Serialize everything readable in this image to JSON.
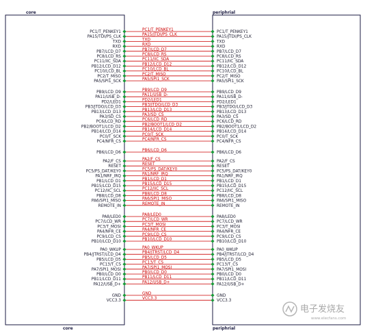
{
  "blocks": {
    "core_top": "core",
    "core_bottom": "core",
    "periph_top": "periphrial",
    "periph_bottom": "periphrial"
  },
  "watermark": {
    "text": "电子发烧友",
    "url": "www.elecfans.com"
  },
  "colors": {
    "wire": "#cc0000",
    "pin": "#1a9a3a",
    "box": "#1a1a40",
    "text": "#1a1a2e",
    "net_label": "#cc0000"
  },
  "connections": [
    {
      "core": "PC1/T_PENKEY1",
      "net": "PC1/T_PENKEY1",
      "periph": "PC1/T_PENKEY1"
    },
    {
      "core": "PA15/TDI/PS_CLK",
      "net": "PA15/JTDI/PS_CLK",
      "periph": "PA15/JTDI/PS_CLK"
    },
    {
      "core": "TXD",
      "net": "TXD",
      "periph": "TXD"
    },
    {
      "core": "RXD",
      "net": "RXD",
      "periph": "RXD"
    },
    {
      "core": "PB7/LCD_D7",
      "net": "PB7/LCD_D7",
      "periph": "PB7/LCD_D7"
    },
    {
      "core": "PC8/LCD_RS",
      "net": "PC8/LCD_RS",
      "periph": "PC8/LCD_RS"
    },
    {
      "core": "PC11/IIC_SDA",
      "net": "PC11/IIC_SDA",
      "periph": "PC11/IIC_SDA"
    },
    {
      "core": "PB12/LCD_D12",
      "net": "PB12/LCD_D12",
      "periph": "PB12/LCD_D12"
    },
    {
      "core": "PC10/LCD_BL",
      "net": "PC10/LCD_BL",
      "periph": "PC10/LCD_BL"
    },
    {
      "core": "PC2/T_MISO",
      "net": "PC2/T_MISO",
      "periph": "PC2/T_MISO"
    },
    {
      "core": "PA5/SPI1_SCK",
      "net": "PA5/SPI1_SCK",
      "periph": "PA5/SPI1_SCK"
    },
    {
      "core": "PB9/LCD_D9",
      "net": "PB9/LCD_D9",
      "periph": "PB9/LCD_D9"
    },
    {
      "core": "PA11/USB_D-",
      "net": "PA11/USB_D-",
      "periph": "PA11/USB_D-"
    },
    {
      "core": "PD2/LED1",
      "net": "PD2/LED1",
      "periph": "PD2/LED1"
    },
    {
      "core": "PB3/JTDO/LCD_D3",
      "net": "PB3/JTDO/LCD_D3",
      "periph": "PB3/JTDO/LCD_D3"
    },
    {
      "core": "PB13/LCD_D13",
      "net": "PB13/LCD_D13",
      "periph": "PB13/LCD_D13"
    },
    {
      "core": "PA3/SD_CS",
      "net": "PA3/SD_CS",
      "periph": "PA3/SD_CS"
    },
    {
      "core": "PC6/LCD_RD",
      "net": "PC6/LCD_RD",
      "periph": "PC6/LCD_RD"
    },
    {
      "core": "PB2/BOOT1/LCD_D2",
      "net": "PB2/BOOT1/LCD_D2",
      "periph": "PB2/BOOT1/LCD_D2"
    },
    {
      "core": "PB14/LCD_D14",
      "net": "PB14/LCD_D14",
      "periph": "PB14/LCD_D14"
    },
    {
      "core": "PC0/T_SCK",
      "net": "PC0/T_SCK",
      "periph": "PC0/T_SCK"
    },
    {
      "core": "PC4/NFR_CS",
      "net": "PC4/NFR_CS",
      "periph": "PC4/NFR_CS"
    },
    {
      "core": "PB6/LCD_D6",
      "net": "PB6/LCD_D6",
      "periph": "PB6/LCD_D6"
    },
    {
      "core": "PA2/F_CS",
      "net": "PA2/F_CS",
      "periph": "PA2/F_CS"
    },
    {
      "core": "RESET",
      "net": "RESET",
      "periph": "RESET"
    },
    {
      "core": "PC5/PS_DAT/KEY0",
      "net": "PC5/PS_DAT/KEY0",
      "periph": "PC5/PS_DAT/KEY0"
    },
    {
      "core": "PA1/NRF_IRQ",
      "net": "PA1/NRF_IRQ",
      "periph": "PA1/NRF_IRQ"
    },
    {
      "core": "PB1/LCD_D1",
      "net": "PB1/LCD_D1",
      "periph": "PB1/LCD_D1"
    },
    {
      "core": "PB15/LCD_D15",
      "net": "PB15/LCD_D15",
      "periph": "PB15/LCD_D15"
    },
    {
      "core": "PC12/IIC_SCL",
      "net": "PC12/IIC_SCL",
      "periph": "PC12/IIC_SCL"
    },
    {
      "core": "PB8/LCD_D8",
      "net": "PB8/LCD_D8",
      "periph": "PB8/LCD_D8"
    },
    {
      "core": "PA6/SPI1_MISO",
      "net": "PA6/SPI1_MISO",
      "periph": "PA6/SPI1_MISO"
    },
    {
      "core": "REMOTE_IN",
      "net": "REMOTE_IN",
      "periph": "REMOTE_IN"
    },
    {
      "core": "PA8/LED0",
      "net": "PA8/LED0",
      "periph": "PA8/LED0"
    },
    {
      "core": "PC7/LCD_WR",
      "net": "PC7/LCD_WR",
      "periph": "PC7/LCD_WR"
    },
    {
      "core": "PC3/T_MOSI",
      "net": "PC3/T_MOSI",
      "periph": "PC3/T_MOSI"
    },
    {
      "core": "PA4/NFR_CE",
      "net": "PA4/NFR_CE",
      "periph": "PA4/NFR_CE"
    },
    {
      "core": "PC9/LCD_CS",
      "net": "PC9/LCD_CS",
      "periph": "PC9/LCD_CS"
    },
    {
      "core": "PB10/LCD_D10",
      "net": "PB10/LCD_D10",
      "periph": "PB10/LCD_D10"
    },
    {
      "core": "PA0_WKUP",
      "net": "PA0_WKUP",
      "periph": "PA0_WKUP"
    },
    {
      "core": "PB4/JTRST/LCD_D4",
      "net": "PB4/JTRST/LCD_D4",
      "periph": "PB4/JTRST/LCD_D4"
    },
    {
      "core": "PB5/LCD_D5",
      "net": "PB5/LCD_D5",
      "periph": "PB5/LCD_D5"
    },
    {
      "core": "PC13/T_CS",
      "net": "PC13/T_CS",
      "periph": "PC13/T_CS"
    },
    {
      "core": "PA7/SPI1_MOSI",
      "net": "PA7/SPI1_MOSI",
      "periph": "PA7/SPI1_MOSI"
    },
    {
      "core": "PB0/LCD_D0",
      "net": "PB0/LCD_D0",
      "periph": "PB0/LCD_D0"
    },
    {
      "core": "PB11/LCD_D11",
      "net": "PB11/LCD_D11",
      "periph": "PB11/LCD_D11"
    },
    {
      "core": "PA12/USB_D+",
      "net": "PA12/USB_D+",
      "periph": "PA12/USB_D+"
    },
    {
      "core": "GND",
      "net": "GND",
      "periph": "GND"
    },
    {
      "core": "VCC3.3",
      "net": "VCC3.3",
      "periph": "VCC3.3"
    }
  ]
}
